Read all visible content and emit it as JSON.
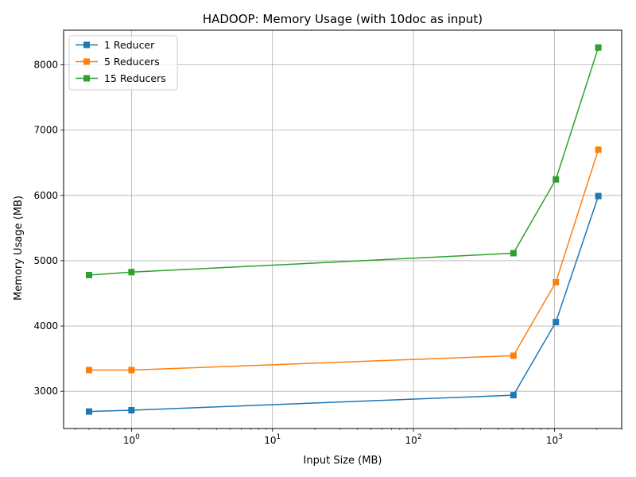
{
  "chart_data": {
    "type": "line",
    "title": "HADOOP: Memory Usage (with 10doc as input)",
    "xlabel": "Input Size (MB)",
    "ylabel": "Memory Usage (MB)",
    "xscale": "log",
    "xlim": [
      0.33,
      3000
    ],
    "ylim": [
      2430,
      8530
    ],
    "grid": true,
    "legend_position": "top-left",
    "marker": "square",
    "x": [
      0.5,
      1,
      512,
      1024,
      2048
    ],
    "xticks": [
      {
        "value": 1,
        "base": "10",
        "exp": "0"
      },
      {
        "value": 10,
        "base": "10",
        "exp": "1"
      },
      {
        "value": 100,
        "base": "10",
        "exp": "2"
      },
      {
        "value": 1000,
        "base": "10",
        "exp": "3"
      }
    ],
    "yticks": [
      3000,
      4000,
      5000,
      6000,
      7000,
      8000
    ],
    "yticklabels": [
      "3000",
      "4000",
      "5000",
      "6000",
      "7000",
      "8000"
    ],
    "series": [
      {
        "name": "1 Reducer",
        "color": "#1f77b4",
        "values": [
          2690,
          2710,
          2940,
          4060,
          5990
        ]
      },
      {
        "name": "5 Reducers",
        "color": "#ff7f0e",
        "values": [
          3325,
          3325,
          3545,
          4670,
          6700
        ]
      },
      {
        "name": "15 Reducers",
        "color": "#2ca02c",
        "values": [
          4780,
          4825,
          5115,
          6245,
          8265
        ]
      }
    ]
  }
}
